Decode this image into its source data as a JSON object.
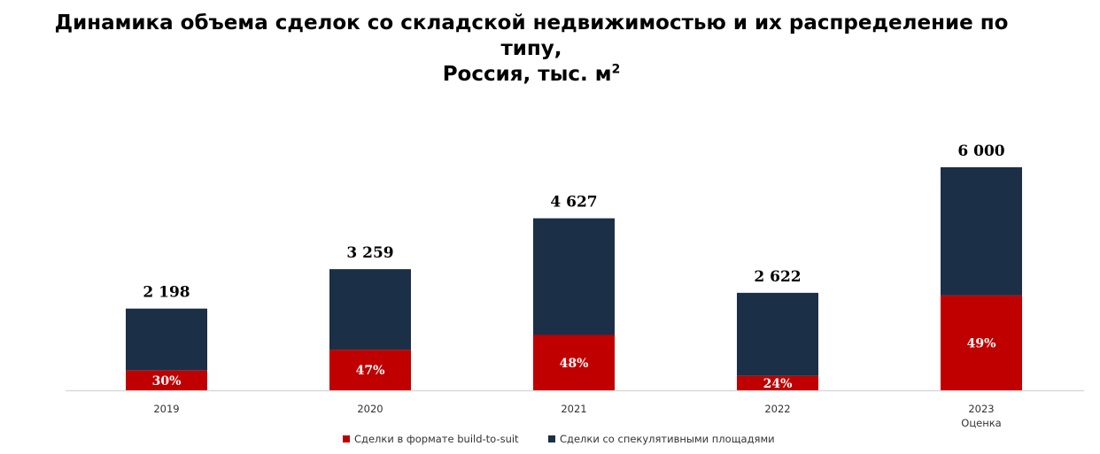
{
  "title": {
    "line1": "Динамика объема сделок со складской недвижимостью и их распределение по",
    "line2": "типу,",
    "line3": "Россия, тыс. м",
    "line3_sup": "2"
  },
  "colors": {
    "bts": "#c00000",
    "spec": "#1b2f47",
    "axis": "#d9d9d9"
  },
  "chart_data": {
    "type": "bar",
    "stacked": true,
    "categories": [
      "2019",
      "2020",
      "2021",
      "2022",
      "2023"
    ],
    "category_sublabels": [
      "",
      "",
      "",
      "",
      "Оценка"
    ],
    "totals": [
      2198,
      3259,
      4627,
      2622,
      6000
    ],
    "total_labels": [
      "2 198",
      "3 259",
      "4 627",
      "2 622",
      "6 000"
    ],
    "bts_share_labels": [
      "30%",
      "47%",
      "48%",
      "24%",
      "49%"
    ],
    "series": [
      {
        "name": "Сделки в формате build-to-suit",
        "values": [
          530,
          1086,
          1488,
          385,
          2550
        ]
      },
      {
        "name": "Сделки со спекулятивными площадями",
        "values": [
          1668,
          2173,
          3139,
          2237,
          3450
        ]
      }
    ],
    "ylim": [
      0,
      6000
    ],
    "grid": false,
    "legend_position": "bottom"
  }
}
